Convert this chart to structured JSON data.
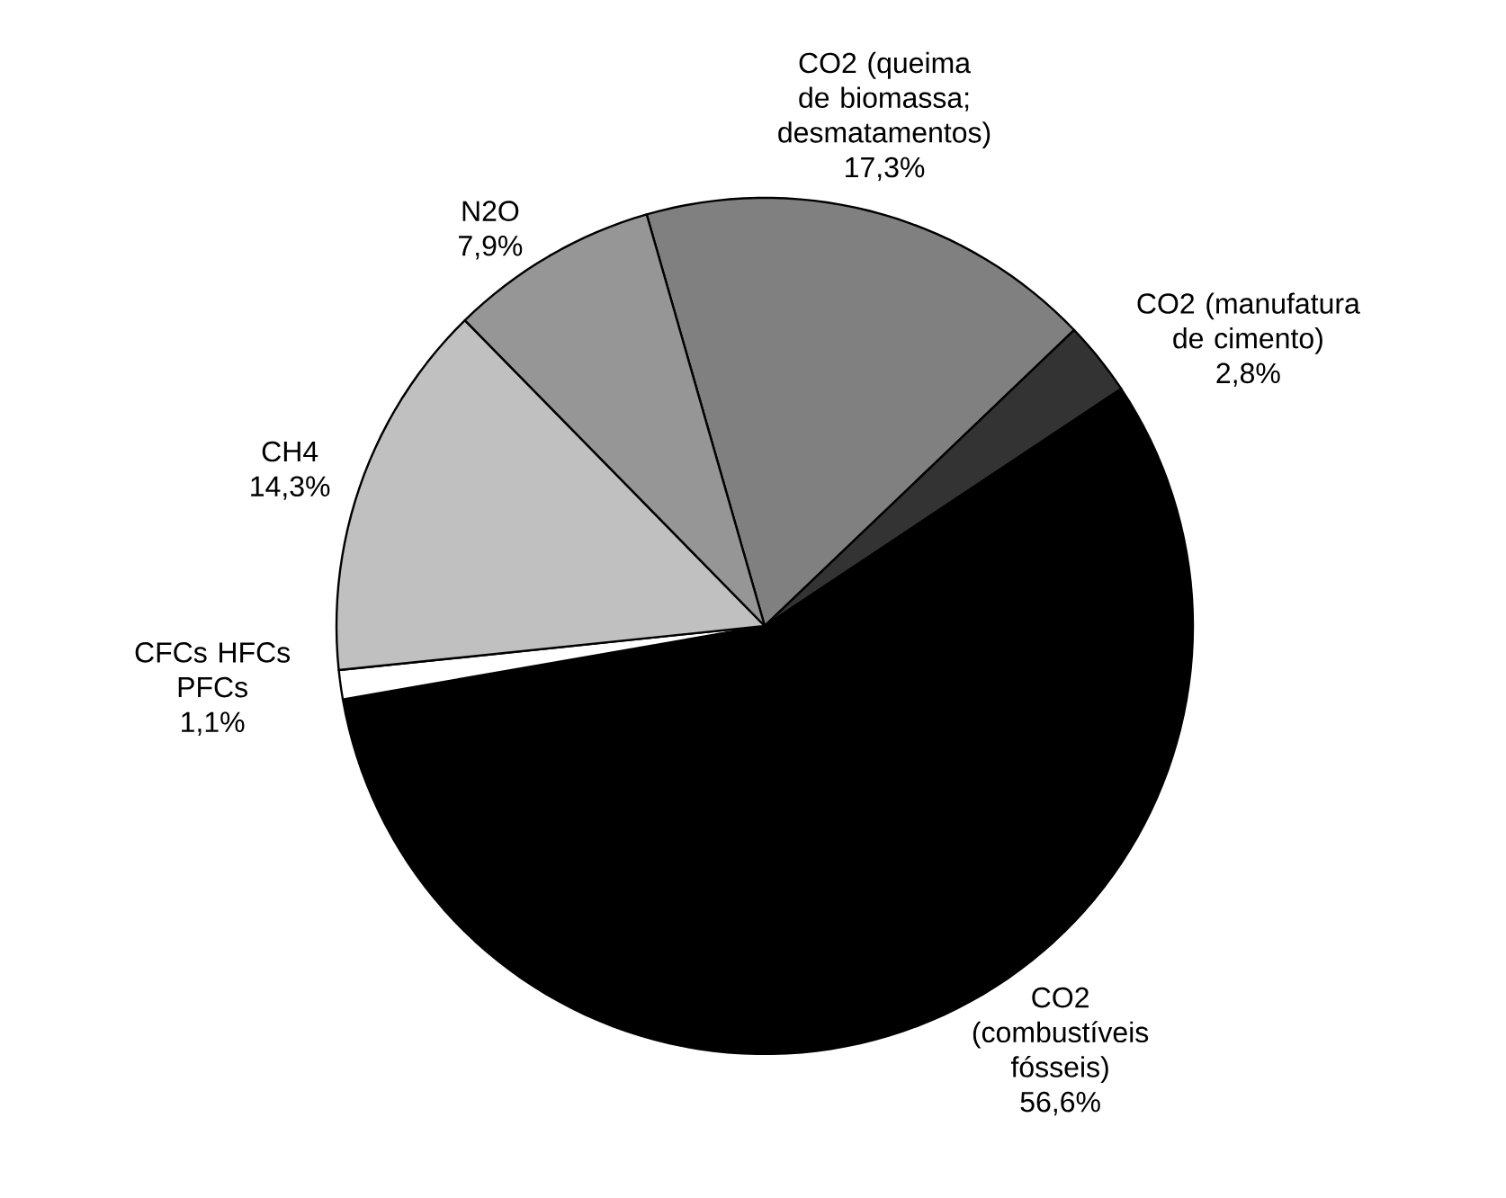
{
  "chart_data": {
    "type": "pie",
    "categories": [
      "CO2 (queima de biomassa; desmatamentos)",
      "CO2 (manufatura de cimento)",
      "CO2 (combustíveis fósseis)",
      "CFCs HFCs PFCs",
      "CH4",
      "N2O"
    ],
    "values": [
      17.3,
      2.8,
      56.6,
      1.1,
      14.3,
      7.9
    ],
    "value_labels": [
      "17,3%",
      "2,8%",
      "56,6%",
      "1,1%",
      "14,3%",
      "7,9%"
    ],
    "colors": [
      "#808080",
      "#333333",
      "#000000",
      "#ffffff",
      "#c0c0c0",
      "#969696"
    ]
  }
}
